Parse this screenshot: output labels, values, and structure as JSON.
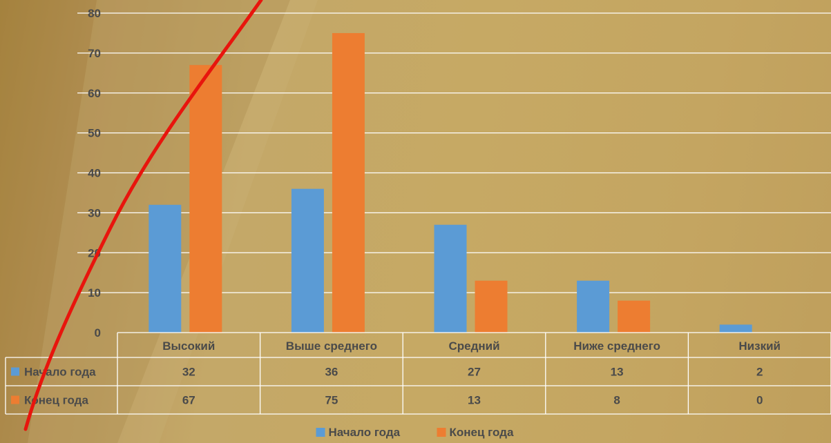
{
  "chart_data": {
    "type": "bar",
    "categories": [
      "Высокий",
      "Выше среднего",
      "Средний",
      "Ниже среднего",
      "Низкий"
    ],
    "series": [
      {
        "name": "Начало года",
        "values": [
          32,
          36,
          27,
          13,
          2
        ],
        "color": "#5b9bd5"
      },
      {
        "name": "Конец года",
        "values": [
          67,
          75,
          13,
          8,
          0
        ],
        "color": "#ed7d31"
      }
    ],
    "yticks": [
      0,
      10,
      20,
      30,
      40,
      50,
      60,
      70,
      80
    ],
    "ylim": [
      0,
      80
    ],
    "grid": true,
    "data_table": true,
    "legend_position": "bottom",
    "gridline_color": "#ffffff",
    "annotation_stroke_color": "#e8150d"
  }
}
